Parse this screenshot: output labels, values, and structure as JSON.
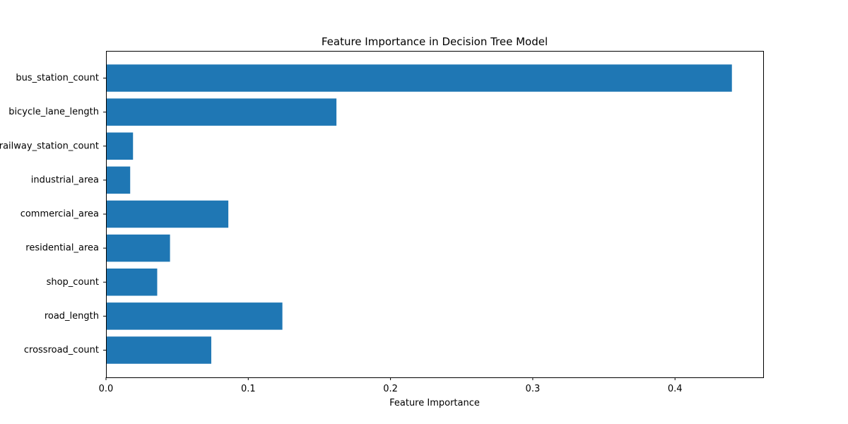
{
  "chart_data": {
    "type": "bar",
    "orientation": "horizontal",
    "title": "Feature Importance in Decision Tree Model",
    "xlabel": "Feature Importance",
    "ylabel": "",
    "categories": [
      "bus_station_count",
      "bicycle_lane_length",
      "railway_station_count",
      "industrial_area",
      "commercial_area",
      "residential_area",
      "shop_count",
      "road_length",
      "crossroad_count"
    ],
    "values": [
      0.44,
      0.162,
      0.019,
      0.017,
      0.086,
      0.045,
      0.036,
      0.124,
      0.074
    ],
    "xlim": [
      0,
      0.462
    ],
    "xticks": [
      0.0,
      0.1,
      0.2,
      0.3,
      0.4
    ],
    "xtick_labels": [
      "0.0",
      "0.1",
      "0.2",
      "0.3",
      "0.4"
    ],
    "bar_color": "#1f77b4",
    "grid": false,
    "legend": false
  }
}
